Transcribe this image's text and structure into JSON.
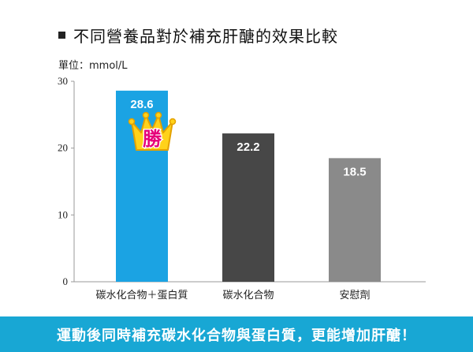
{
  "title": "不同營養品對於補充肝醣的效果比較",
  "unit_label": "單位：mmol/L",
  "badge": {
    "text": "勝",
    "icon": "crown-icon"
  },
  "banner": {
    "text": "運動後同時補充碳水化合物與蛋白質，更能增加肝醣！",
    "color": "#18a7d4"
  },
  "chart_data": {
    "type": "bar",
    "categories": [
      "碳水化合物＋蛋白質",
      "碳水化合物",
      "安慰劑"
    ],
    "values": [
      28.6,
      22.2,
      18.5
    ],
    "value_labels": [
      "28.6",
      "22.2",
      "18.5"
    ],
    "ylim": [
      0,
      30
    ],
    "yticks": [
      0,
      10,
      20,
      30
    ],
    "ytick_labels": [
      "0",
      "10",
      "20",
      "30"
    ],
    "colors": [
      "#1ba3e3",
      "#474747",
      "#8a8a8a"
    ],
    "grid": false,
    "legend": "none"
  }
}
